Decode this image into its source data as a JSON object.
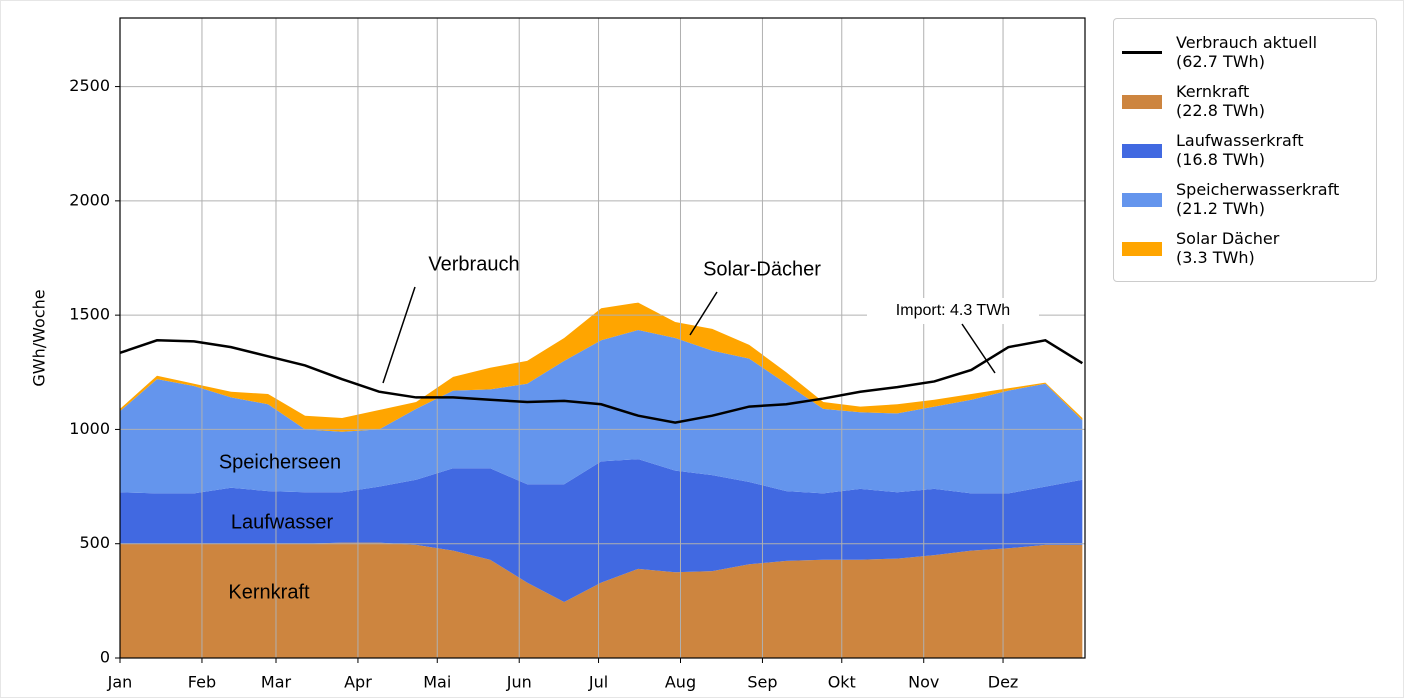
{
  "chart_data": {
    "type": "stacked-area",
    "ylabel": "GWh/Woche",
    "xlim": [
      0,
      365
    ],
    "xticks": [
      {
        "value": 0,
        "label": "Jan"
      },
      {
        "value": 31,
        "label": "Feb"
      },
      {
        "value": 59,
        "label": "Mar"
      },
      {
        "value": 90,
        "label": "Apr"
      },
      {
        "value": 120,
        "label": "Mai"
      },
      {
        "value": 151,
        "label": "Jun"
      },
      {
        "value": 181,
        "label": "Jul"
      },
      {
        "value": 212,
        "label": "Aug"
      },
      {
        "value": 243,
        "label": "Sep"
      },
      {
        "value": 273,
        "label": "Okt"
      },
      {
        "value": 304,
        "label": "Nov"
      },
      {
        "value": 334,
        "label": "Dez"
      }
    ],
    "ylim": [
      0,
      2800
    ],
    "yticks": [
      0,
      500,
      1000,
      1500,
      2000,
      2500
    ],
    "grid": true,
    "legend": "outside-upper-right",
    "x": [
      0,
      14,
      28,
      42,
      56,
      70,
      84,
      98,
      112,
      126,
      140,
      154,
      168,
      182,
      196,
      210,
      224,
      238,
      252,
      266,
      280,
      294,
      308,
      322,
      336,
      350,
      364
    ],
    "series": [
      {
        "name": "Verbrauch aktuell\n(62.7 TWh)",
        "kind": "line",
        "color": "#000000",
        "values": [
          1335,
          1390,
          1385,
          1360,
          1320,
          1280,
          1220,
          1165,
          1140,
          1140,
          1130,
          1120,
          1125,
          1110,
          1060,
          1030,
          1060,
          1100,
          1110,
          1135,
          1165,
          1185,
          1210,
          1260,
          1360,
          1390,
          1290
        ]
      },
      {
        "name": "Kernkraft\n(22.8 TWh)",
        "kind": "area",
        "color": "#cd853f",
        "values": [
          500,
          500,
          500,
          500,
          500,
          500,
          505,
          505,
          495,
          470,
          430,
          330,
          245,
          330,
          390,
          375,
          380,
          410,
          425,
          430,
          430,
          435,
          450,
          470,
          480,
          495,
          495
        ]
      },
      {
        "name": "Laufwasserkraft\n(16.8 TWh)",
        "kind": "area",
        "color": "#4169e1",
        "values": [
          225,
          220,
          220,
          245,
          230,
          225,
          220,
          245,
          285,
          360,
          400,
          430,
          515,
          530,
          480,
          445,
          420,
          360,
          305,
          290,
          310,
          290,
          290,
          250,
          240,
          255,
          285
        ]
      },
      {
        "name": "Speicherwasserkraft\n(21.2 TWh)",
        "kind": "area",
        "color": "#6495ed",
        "values": [
          355,
          500,
          470,
          395,
          380,
          275,
          265,
          250,
          310,
          340,
          345,
          440,
          540,
          530,
          565,
          580,
          545,
          540,
          470,
          370,
          335,
          345,
          360,
          410,
          450,
          450,
          260
        ]
      },
      {
        "name": "Solar Dächer\n(3.3 TWh)",
        "kind": "area",
        "color": "#ffa500",
        "values": [
          10,
          15,
          10,
          25,
          45,
          60,
          60,
          85,
          30,
          60,
          95,
          100,
          100,
          140,
          120,
          70,
          95,
          60,
          50,
          30,
          25,
          40,
          30,
          25,
          10,
          5,
          10
        ]
      }
    ],
    "annotations": [
      "Verbrauch",
      "Solar-Dächer",
      "Import: 4.3 TWh",
      "Speicherseen",
      "Laufwasser",
      "Kernkraft"
    ]
  }
}
